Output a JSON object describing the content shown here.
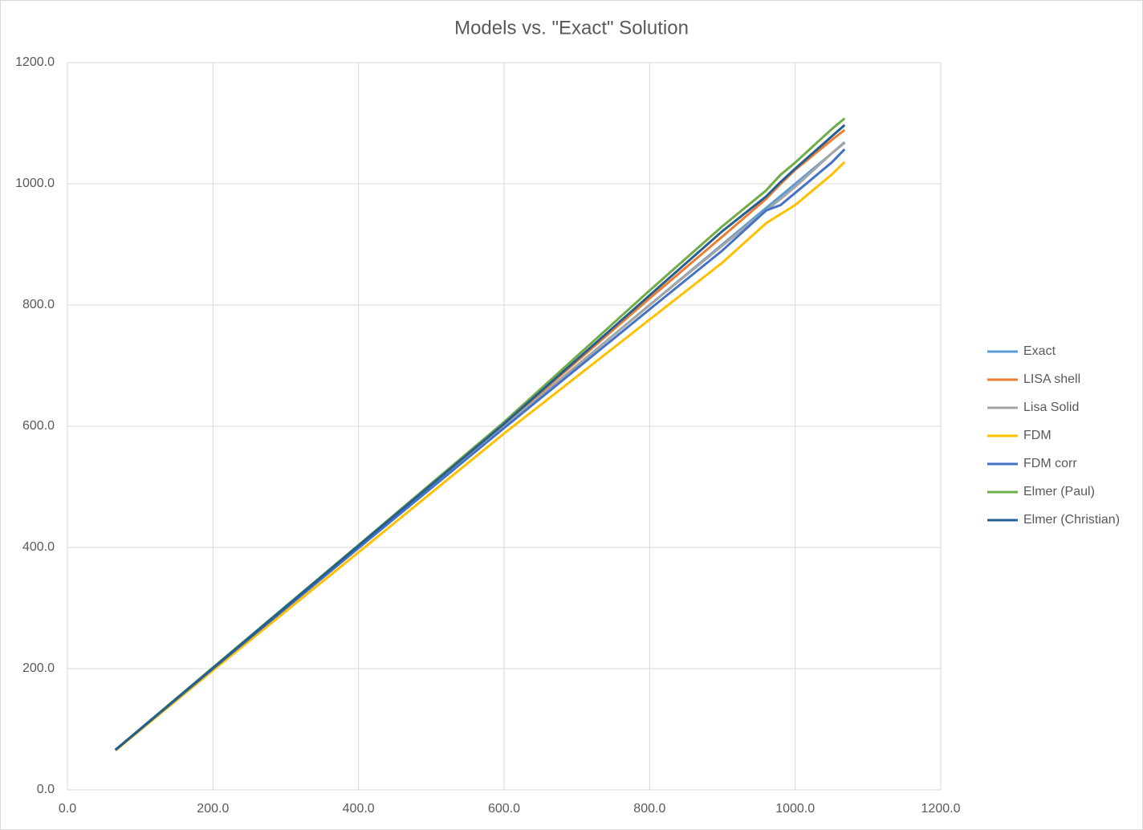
{
  "chart_data": {
    "type": "line",
    "title": "Models vs. \"Exact\" Solution",
    "x": [
      66,
      200,
      400,
      600,
      800,
      900,
      960,
      980,
      1000,
      1050,
      1068
    ],
    "series": [
      {
        "name": "Exact",
        "color": "#5b9bd5",
        "values": [
          66,
          200,
          400,
          600,
          800,
          900,
          960,
          980,
          1000,
          1050,
          1068
        ]
      },
      {
        "name": "LISA shell",
        "color": "#ed7d31",
        "values": [
          66,
          201,
          402,
          603,
          811,
          913,
          975,
          1000,
          1023,
          1072,
          1089
        ]
      },
      {
        "name": "Lisa Solid",
        "color": "#a5a5a5",
        "values": [
          66,
          200,
          400,
          600,
          800,
          898,
          956,
          975,
          995,
          1050,
          1069
        ]
      },
      {
        "name": "FDM",
        "color": "#ffc000",
        "values": [
          65,
          197,
          392,
          588,
          776,
          870,
          935,
          950,
          965,
          1015,
          1036
        ]
      },
      {
        "name": "FDM corr",
        "color": "#4472c4",
        "values": [
          66,
          200,
          399,
          597,
          793,
          890,
          956,
          965,
          985,
          1035,
          1057
        ]
      },
      {
        "name": "Elmer (Paul)",
        "color": "#70ad47",
        "values": [
          66,
          202,
          404,
          607,
          824,
          930,
          989,
          1015,
          1035,
          1090,
          1108
        ]
      },
      {
        "name": "Elmer (Christian)",
        "color": "#255e91",
        "values": [
          66,
          201,
          403,
          604,
          816,
          922,
          979,
          1003,
          1025,
          1078,
          1097
        ]
      }
    ],
    "xlim": [
      0,
      1200
    ],
    "xticks": [
      {
        "value": 0,
        "label": "0.0"
      },
      {
        "value": 200,
        "label": "200.0"
      },
      {
        "value": 400,
        "label": "400.0"
      },
      {
        "value": 600,
        "label": "600.0"
      },
      {
        "value": 800,
        "label": "800.0"
      },
      {
        "value": 1000,
        "label": "1000.0"
      },
      {
        "value": 1200,
        "label": "1200.0"
      }
    ],
    "ylim": [
      0,
      1200
    ],
    "yticks": [
      {
        "value": 0,
        "label": "0.0"
      },
      {
        "value": 200,
        "label": "200.0"
      },
      {
        "value": 400,
        "label": "400.0"
      },
      {
        "value": 600,
        "label": "600.0"
      },
      {
        "value": 800,
        "label": "800.0"
      },
      {
        "value": 1000,
        "label": "1000.0"
      },
      {
        "value": 1200,
        "label": "1200.0"
      }
    ],
    "grid": true,
    "legend": "right"
  }
}
